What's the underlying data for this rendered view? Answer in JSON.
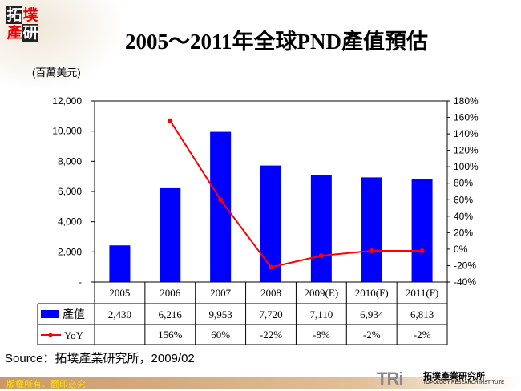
{
  "logo": {
    "chars": [
      "拓",
      "墣",
      "產",
      "研"
    ]
  },
  "title": "2005～2011年全球PND產值預估",
  "unit": "(百萬美元)",
  "chart_data": {
    "type": "bar+line",
    "title": "2005～2011年全球PND產值預估",
    "categories": [
      "2005",
      "2006",
      "2007",
      "2008",
      "2009(E)",
      "2010(F)",
      "2011(F)"
    ],
    "series": [
      {
        "name": "產值",
        "type": "bar",
        "axis": "left",
        "color": "#0000ff",
        "values": [
          2430,
          6216,
          9953,
          7720,
          7110,
          6934,
          6813
        ],
        "labels": [
          "2,430",
          "6,216",
          "9,953",
          "7,720",
          "7,110",
          "6,934",
          "6,813"
        ]
      },
      {
        "name": "YoY",
        "type": "line",
        "axis": "right",
        "color": "#ff0000",
        "values": [
          null,
          156,
          60,
          -22,
          -8,
          -2,
          -2
        ],
        "labels": [
          "",
          "156%",
          "60%",
          "-22%",
          "-8%",
          "-2%",
          "-2%"
        ]
      }
    ],
    "ylim": [
      0,
      12000
    ],
    "yticks": [
      "-",
      "2,000",
      "4,000",
      "6,000",
      "8,000",
      "10,000",
      "12,000"
    ],
    "y2lim": [
      -40,
      180
    ],
    "y2ticks": [
      "-40%",
      "-20%",
      "0%",
      "20%",
      "40%",
      "60%",
      "80%",
      "100%",
      "120%",
      "140%",
      "160%",
      "180%"
    ],
    "legend": "data-table"
  },
  "source": "Source：拓墣產業研究所，2009/02",
  "footer": "版權所有．翻印必究",
  "tri": {
    "mark": "TRi",
    "name": "拓墣產業研究所",
    "english": "TOPOLOGY RESEARCH INSTITUTE"
  }
}
